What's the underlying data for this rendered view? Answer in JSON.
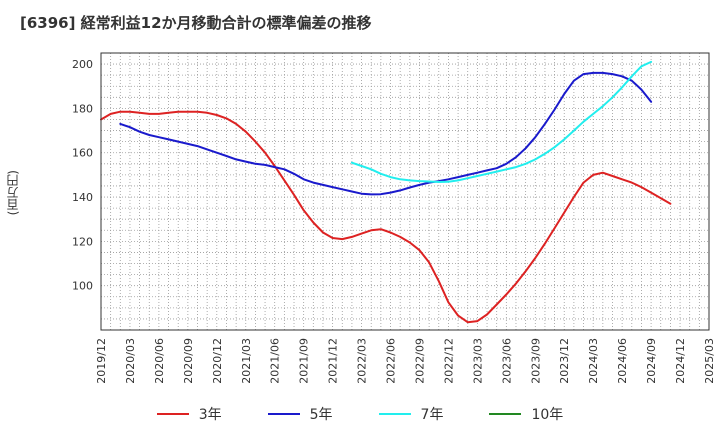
{
  "title": "[6396]  経常利益12か月移動合計の標準偏差の推移",
  "y_axis_label": "(百万円)",
  "chart_data": {
    "type": "line",
    "title": "[6396]  経常利益12か月移動合計の標準偏差の推移",
    "ylabel": "(百万円)",
    "xlabel": "",
    "ylim": [
      80,
      205
    ],
    "xlim": [
      "2019/12",
      "2025/03"
    ],
    "y_ticks": [
      100,
      120,
      140,
      160,
      180,
      200
    ],
    "x_ticks": [
      "2019/12",
      "2020/03",
      "2020/06",
      "2020/09",
      "2020/12",
      "2021/03",
      "2021/06",
      "2021/09",
      "2021/12",
      "2022/03",
      "2022/06",
      "2022/09",
      "2022/12",
      "2023/03",
      "2023/06",
      "2023/09",
      "2023/12",
      "2024/03",
      "2024/06",
      "2024/09",
      "2024/12",
      "2025/03"
    ],
    "grid": true,
    "legend_position": "bottom",
    "series": [
      {
        "name": "3年",
        "color": "#dd2222",
        "points": [
          [
            "2019/12",
            175
          ],
          [
            "2020/01",
            177.5
          ],
          [
            "2020/02",
            178.5
          ],
          [
            "2020/03",
            178.5
          ],
          [
            "2020/04",
            178
          ],
          [
            "2020/05",
            177.5
          ],
          [
            "2020/06",
            177.5
          ],
          [
            "2020/07",
            178
          ],
          [
            "2020/08",
            178.5
          ],
          [
            "2020/09",
            178.5
          ],
          [
            "2020/10",
            178.5
          ],
          [
            "2020/11",
            178
          ],
          [
            "2020/12",
            177
          ],
          [
            "2021/01",
            175.5
          ],
          [
            "2021/02",
            173
          ],
          [
            "2021/03",
            169.5
          ],
          [
            "2021/04",
            165
          ],
          [
            "2021/05",
            160
          ],
          [
            "2021/06",
            154
          ],
          [
            "2021/07",
            147.5
          ],
          [
            "2021/08",
            141
          ],
          [
            "2021/09",
            134
          ],
          [
            "2021/10",
            128.5
          ],
          [
            "2021/11",
            124
          ],
          [
            "2021/12",
            121.5
          ],
          [
            "2022/01",
            121
          ],
          [
            "2022/02",
            122
          ],
          [
            "2022/03",
            123.5
          ],
          [
            "2022/04",
            125
          ],
          [
            "2022/05",
            125.5
          ],
          [
            "2022/06",
            124
          ],
          [
            "2022/07",
            122
          ],
          [
            "2022/08",
            119.5
          ],
          [
            "2022/09",
            116
          ],
          [
            "2022/10",
            110.5
          ],
          [
            "2022/11",
            102
          ],
          [
            "2022/12",
            92.5
          ],
          [
            "2023/01",
            86.5
          ],
          [
            "2023/02",
            83.5
          ],
          [
            "2023/03",
            84
          ],
          [
            "2023/04",
            87
          ],
          [
            "2023/05",
            91.5
          ],
          [
            "2023/06",
            96
          ],
          [
            "2023/07",
            101
          ],
          [
            "2023/08",
            106.5
          ],
          [
            "2023/09",
            112.5
          ],
          [
            "2023/10",
            119
          ],
          [
            "2023/11",
            126
          ],
          [
            "2023/12",
            133
          ],
          [
            "2024/01",
            140
          ],
          [
            "2024/02",
            146.5
          ],
          [
            "2024/03",
            150
          ],
          [
            "2024/04",
            151
          ],
          [
            "2024/05",
            149.5
          ],
          [
            "2024/06",
            148
          ],
          [
            "2024/07",
            146.5
          ],
          [
            "2024/08",
            144.5
          ],
          [
            "2024/09",
            142
          ],
          [
            "2024/10",
            139.5
          ],
          [
            "2024/11",
            137
          ]
        ]
      },
      {
        "name": "5年",
        "color": "#1a1acc",
        "points": [
          [
            "2020/02",
            173
          ],
          [
            "2020/03",
            171.5
          ],
          [
            "2020/04",
            169.5
          ],
          [
            "2020/05",
            168
          ],
          [
            "2020/06",
            167
          ],
          [
            "2020/07",
            166
          ],
          [
            "2020/08",
            165
          ],
          [
            "2020/09",
            164
          ],
          [
            "2020/10",
            163
          ],
          [
            "2020/11",
            161.5
          ],
          [
            "2020/12",
            160
          ],
          [
            "2021/01",
            158.5
          ],
          [
            "2021/02",
            157
          ],
          [
            "2021/03",
            156
          ],
          [
            "2021/04",
            155
          ],
          [
            "2021/05",
            154.5
          ],
          [
            "2021/06",
            153.5
          ],
          [
            "2021/07",
            152.5
          ],
          [
            "2021/08",
            150.5
          ],
          [
            "2021/09",
            148
          ],
          [
            "2021/10",
            146.5
          ],
          [
            "2021/11",
            145.5
          ],
          [
            "2021/12",
            144.5
          ],
          [
            "2022/01",
            143.5
          ],
          [
            "2022/02",
            142.5
          ],
          [
            "2022/03",
            141.5
          ],
          [
            "2022/04",
            141.2
          ],
          [
            "2022/05",
            141.3
          ],
          [
            "2022/06",
            142
          ],
          [
            "2022/07",
            143
          ],
          [
            "2022/08",
            144.3
          ],
          [
            "2022/09",
            145.5
          ],
          [
            "2022/10",
            146.5
          ],
          [
            "2022/11",
            147.2
          ],
          [
            "2022/12",
            148
          ],
          [
            "2023/01",
            149
          ],
          [
            "2023/02",
            150
          ],
          [
            "2023/03",
            151
          ],
          [
            "2023/04",
            152
          ],
          [
            "2023/05",
            153
          ],
          [
            "2023/06",
            155
          ],
          [
            "2023/07",
            158
          ],
          [
            "2023/08",
            162
          ],
          [
            "2023/09",
            167
          ],
          [
            "2023/10",
            173
          ],
          [
            "2023/11",
            179.5
          ],
          [
            "2023/12",
            186.5
          ],
          [
            "2024/01",
            192.5
          ],
          [
            "2024/02",
            195.5
          ],
          [
            "2024/03",
            196
          ],
          [
            "2024/04",
            196
          ],
          [
            "2024/05",
            195.5
          ],
          [
            "2024/06",
            194.5
          ],
          [
            "2024/07",
            192.5
          ],
          [
            "2024/08",
            188.5
          ],
          [
            "2024/09",
            183
          ]
        ]
      },
      {
        "name": "7年",
        "color": "#22eeee",
        "points": [
          [
            "2022/02",
            155.5
          ],
          [
            "2022/03",
            154
          ],
          [
            "2022/04",
            152.5
          ],
          [
            "2022/05",
            150.5
          ],
          [
            "2022/06",
            149
          ],
          [
            "2022/07",
            148
          ],
          [
            "2022/08",
            147.5
          ],
          [
            "2022/09",
            147.2
          ],
          [
            "2022/10",
            147
          ],
          [
            "2022/11",
            146.8
          ],
          [
            "2022/12",
            146.9
          ],
          [
            "2023/01",
            147.5
          ],
          [
            "2023/02",
            148.5
          ],
          [
            "2023/03",
            149.5
          ],
          [
            "2023/04",
            150.5
          ],
          [
            "2023/05",
            151.5
          ],
          [
            "2023/06",
            152.5
          ],
          [
            "2023/07",
            153.5
          ],
          [
            "2023/08",
            155
          ],
          [
            "2023/09",
            157
          ],
          [
            "2023/10",
            159.5
          ],
          [
            "2023/11",
            162.5
          ],
          [
            "2023/12",
            166
          ],
          [
            "2024/01",
            170
          ],
          [
            "2024/02",
            174
          ],
          [
            "2024/03",
            177.5
          ],
          [
            "2024/04",
            181
          ],
          [
            "2024/05",
            185
          ],
          [
            "2024/06",
            189.5
          ],
          [
            "2024/07",
            194.5
          ],
          [
            "2024/08",
            199
          ],
          [
            "2024/09",
            201
          ]
        ]
      },
      {
        "name": "10年",
        "color": "#228822",
        "points": []
      }
    ]
  }
}
